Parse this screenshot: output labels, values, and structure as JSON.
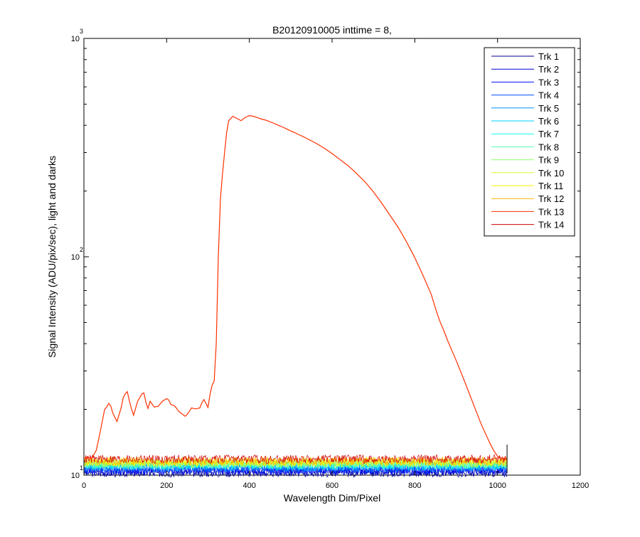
{
  "chart_data": {
    "type": "line",
    "title": "B20120910005 inttime = 8,",
    "xlabel": "Wavelength Dim/Pixel",
    "ylabel": "Signal Intensity (ADU/pix/sec), light and darks",
    "xlim": [
      0,
      1200
    ],
    "ylim": [
      10,
      1000
    ],
    "yscale": "log",
    "xticks": [
      "0",
      "200",
      "400",
      "600",
      "800",
      "1000",
      "1200"
    ],
    "yticks": [
      {
        "value": 10,
        "base": "10",
        "exp": "1"
      },
      {
        "value": 100,
        "base": "10",
        "exp": "2"
      },
      {
        "value": 1000,
        "base": "10",
        "exp": "3"
      }
    ],
    "grid": false,
    "legend_position": "top-right",
    "series": [
      {
        "name": "Trk 1",
        "color": "#00008F",
        "level": 10.25,
        "x": [
          0,
          1023
        ],
        "y": [
          10.25,
          10.25
        ]
      },
      {
        "name": "Trk 2",
        "color": "#0000CF",
        "level": 10.4,
        "x": [
          0,
          1023
        ],
        "y": [
          10.4,
          10.4
        ]
      },
      {
        "name": "Trk 3",
        "color": "#0010FF",
        "level": 10.55,
        "x": [
          0,
          1023
        ],
        "y": [
          10.55,
          10.55
        ]
      },
      {
        "name": "Trk 4",
        "color": "#0050FF",
        "level": 10.7,
        "x": [
          0,
          1023
        ],
        "y": [
          10.7,
          10.7
        ]
      },
      {
        "name": "Trk 5",
        "color": "#0090FF",
        "level": 10.85,
        "x": [
          0,
          1023
        ],
        "y": [
          10.85,
          10.85
        ]
      },
      {
        "name": "Trk 6",
        "color": "#00CFFF",
        "level": 11.0,
        "x": [
          0,
          1023
        ],
        "y": [
          11.0,
          11.0
        ]
      },
      {
        "name": "Trk 7",
        "color": "#10FFEF",
        "level": 11.1,
        "x": [
          0,
          1023
        ],
        "y": [
          11.1,
          11.1
        ]
      },
      {
        "name": "Trk 8",
        "color": "#50FFAF",
        "level": 11.2,
        "x": [
          0,
          1023
        ],
        "y": [
          11.2,
          11.2
        ]
      },
      {
        "name": "Trk 9",
        "color": "#90FF6F",
        "level": 11.3,
        "x": [
          0,
          1023
        ],
        "y": [
          11.3,
          11.3
        ]
      },
      {
        "name": "Trk 10",
        "color": "#CFFF30",
        "level": 11.4,
        "x": [
          0,
          1023
        ],
        "y": [
          11.4,
          11.4
        ]
      },
      {
        "name": "Trk 11",
        "color": "#FFEF00",
        "level": 11.5,
        "x": [
          0,
          1023
        ],
        "y": [
          11.5,
          11.5
        ]
      },
      {
        "name": "Trk 12",
        "color": "#FFAF00",
        "level": 11.6,
        "x": [
          0,
          1023
        ],
        "y": [
          11.6,
          11.6
        ]
      },
      {
        "name": "Trk 13",
        "color": "#FF3000",
        "level": 11.7,
        "x": [
          0,
          10,
          20,
          30,
          40,
          50,
          55,
          60,
          65,
          70,
          80,
          90,
          95,
          100,
          105,
          110,
          115,
          120,
          130,
          140,
          145,
          150,
          155,
          160,
          170,
          180,
          190,
          200,
          205,
          210,
          220,
          230,
          240,
          245,
          250,
          255,
          260,
          270,
          280,
          285,
          290,
          295,
          300,
          305,
          310,
          315,
          320,
          325,
          330,
          335,
          340,
          345,
          350,
          360,
          370,
          380,
          390,
          400,
          410,
          420,
          430,
          440,
          450,
          460,
          470,
          480,
          490,
          500,
          510,
          520,
          530,
          540,
          560,
          580,
          600,
          620,
          640,
          660,
          680,
          700,
          720,
          740,
          760,
          780,
          800,
          820,
          840,
          850,
          860,
          870,
          880,
          900,
          920,
          940,
          960,
          980,
          990,
          1000,
          1010,
          1020,
          1023
        ],
        "y": [
          12,
          12,
          12,
          13,
          16,
          20,
          20.5,
          21.3,
          20.7,
          19.2,
          17.6,
          20.3,
          22.6,
          23.6,
          24.1,
          21.8,
          20.1,
          18.8,
          21.8,
          23.5,
          23.8,
          21.5,
          20.2,
          21.8,
          20.5,
          20.7,
          21.8,
          22.4,
          22.1,
          21.1,
          20.7,
          19.5,
          18.9,
          18.6,
          19.0,
          19.6,
          20.3,
          20.1,
          20.3,
          21.4,
          22.2,
          21.3,
          20.4,
          23.5,
          25.8,
          27.0,
          40,
          100,
          185,
          240,
          300,
          370,
          420,
          440,
          430,
          420,
          435,
          443,
          440,
          433,
          427,
          422,
          415,
          408,
          400,
          393,
          385,
          377,
          370,
          362,
          355,
          347,
          332,
          315,
          297,
          278,
          260,
          240,
          220,
          198,
          176,
          155,
          136,
          117,
          99,
          82,
          67,
          58,
          51,
          46,
          41,
          33.5,
          27,
          21.5,
          17.2,
          14.2,
          13.0,
          12.2,
          11.9,
          12.0,
          12.0
        ]
      },
      {
        "name": "Trk 14",
        "color": "#CF0000",
        "level": 11.85,
        "x": [
          0,
          1023
        ],
        "y": [
          11.85,
          11.85
        ]
      }
    ]
  }
}
